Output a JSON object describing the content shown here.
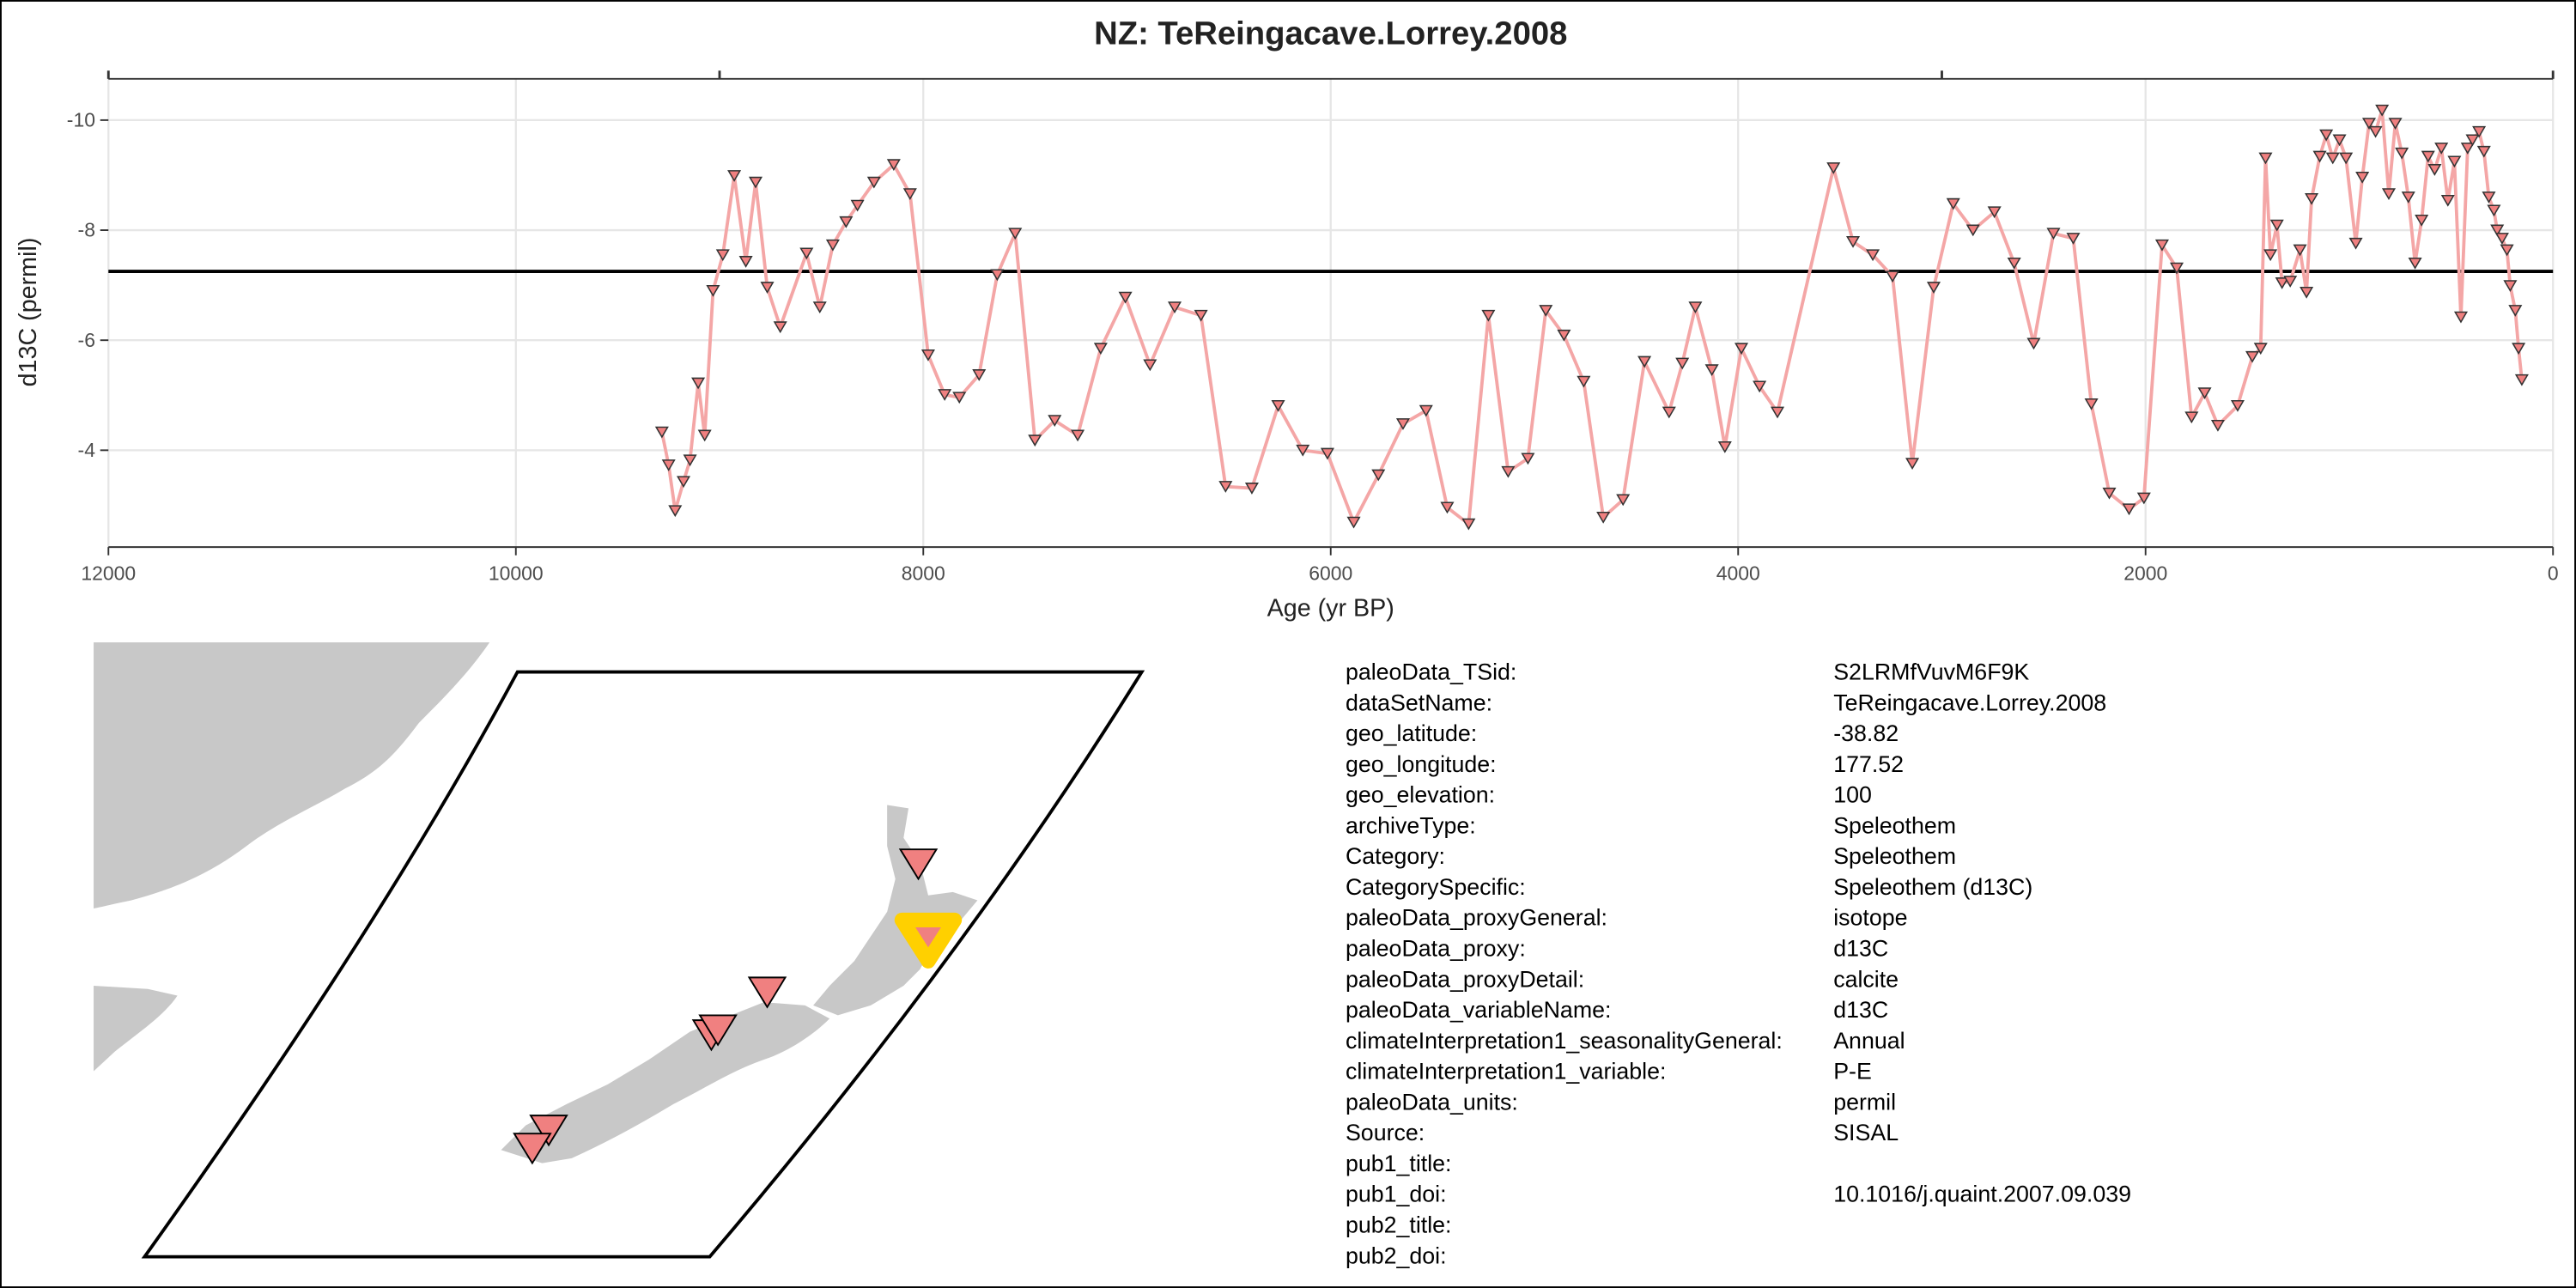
{
  "chart_data": {
    "type": "line",
    "title": "NZ: TeReingacave.Lorrey.2008",
    "x_label": "Age (yr BP)",
    "y_label": "d13C (permil)",
    "x": [
      9283,
      9250,
      9218,
      9177,
      9145,
      9105,
      9073,
      9032,
      8984,
      8928,
      8871,
      8823,
      8766,
      8702,
      8573,
      8508,
      8444,
      8379,
      8323,
      8242,
      8145,
      8065,
      7976,
      7895,
      7823,
      7726,
      7637,
      7549,
      7452,
      7355,
      7242,
      7129,
      7008,
      6887,
      6766,
      6637,
      6516,
      6387,
      6258,
      6137,
      6016,
      5887,
      5766,
      5645,
      5532,
      5428,
      5323,
      5226,
      5129,
      5032,
      4944,
      4855,
      4758,
      4662,
      4565,
      4460,
      4339,
      4274,
      4210,
      4129,
      4065,
      3984,
      3895,
      3807,
      3532,
      3436,
      3339,
      3242,
      3145,
      3040,
      2944,
      2847,
      2742,
      2645,
      2549,
      2452,
      2355,
      2266,
      2178,
      2081,
      2008,
      1919,
      1847,
      1774,
      1710,
      1645,
      1548,
      1476,
      1435,
      1411,
      1387,
      1355,
      1330,
      1290,
      1242,
      1210,
      1185,
      1145,
      1113,
      1081,
      1048,
      1016,
      968,
      936,
      903,
      871,
      839,
      806,
      774,
      742,
      710,
      677,
      645,
      613,
      581,
      548,
      516,
      484,
      452,
      419,
      395,
      363,
      339,
      315,
      290,
      274,
      250,
      226,
      210,
      185,
      169,
      153
    ],
    "values": [
      -4.33,
      -3.73,
      -2.9,
      -3.43,
      -3.82,
      -5.22,
      -4.27,
      -6.9,
      -7.55,
      -8.99,
      -7.43,
      -8.87,
      -6.96,
      -6.24,
      -7.58,
      -6.6,
      -7.73,
      -8.15,
      -8.45,
      -8.87,
      -9.19,
      -8.66,
      -5.73,
      -5.01,
      -4.96,
      -5.37,
      -7.19,
      -7.94,
      -4.18,
      -4.54,
      -4.27,
      -5.85,
      -6.78,
      -5.55,
      -6.6,
      -6.45,
      -3.34,
      -3.31,
      -4.81,
      -4.0,
      -3.94,
      -2.69,
      -3.55,
      -4.48,
      -4.72,
      -2.96,
      -2.66,
      -6.45,
      -3.61,
      -3.85,
      -6.54,
      -6.09,
      -5.25,
      -2.78,
      -3.1,
      -5.61,
      -4.69,
      -5.58,
      -6.6,
      -5.46,
      -4.06,
      -5.85,
      -5.16,
      -4.69,
      -9.13,
      -7.79,
      -7.55,
      -7.16,
      -3.76,
      -6.96,
      -8.48,
      -8.0,
      -8.33,
      -7.4,
      -5.94,
      -7.94,
      -7.85,
      -4.84,
      -3.22,
      -2.93,
      -3.13,
      -7.73,
      -7.31,
      -4.6,
      -5.04,
      -4.45,
      -4.81,
      -5.7,
      -5.85,
      -9.31,
      -7.55,
      -8.09,
      -7.04,
      -7.07,
      -7.64,
      -6.87,
      -8.57,
      -9.34,
      -9.73,
      -9.31,
      -9.64,
      -9.31,
      -7.76,
      -8.96,
      -9.94,
      -9.79,
      -10.18,
      -8.66,
      -9.94,
      -9.4,
      -8.6,
      -7.4,
      -8.18,
      -9.34,
      -9.1,
      -9.49,
      -8.54,
      -9.25,
      -6.42,
      -9.49,
      -9.64,
      -9.79,
      -9.43,
      -8.6,
      -8.36,
      -8.0,
      -7.85,
      -7.64,
      -6.99,
      -6.54,
      -5.85,
      -5.28
    ],
    "line_color": "#f4a6a6",
    "marker_color": "#f08080",
    "reference_line": -7.25,
    "xlim": [
      12000,
      0
    ],
    "xticks": [
      12000,
      10000,
      8000,
      6000,
      4000,
      2000,
      0
    ],
    "top_axis_ticks": [
      12000,
      9000,
      3000,
      0
    ],
    "ylim": [
      -2.24,
      -10.75
    ],
    "yticks": [
      -10,
      -8,
      -6,
      -4
    ],
    "grid": true
  },
  "metadata": {
    "rows": [
      [
        "paleoData_TSid:",
        "S2LRMfVuvM6F9K"
      ],
      [
        "dataSetName:",
        "TeReingacave.Lorrey.2008"
      ],
      [
        "geo_latitude:",
        "-38.82"
      ],
      [
        "geo_longitude:",
        "177.52"
      ],
      [
        "geo_elevation:",
        "100"
      ],
      [
        "archiveType:",
        "Speleothem"
      ],
      [
        "Category:",
        "Speleothem"
      ],
      [
        "CategorySpecific:",
        "Speleothem (d13C)"
      ],
      [
        "paleoData_proxyGeneral:",
        "isotope"
      ],
      [
        "paleoData_proxy:",
        "d13C"
      ],
      [
        "paleoData_proxyDetail:",
        "calcite"
      ],
      [
        "paleoData_variableName:",
        "d13C"
      ],
      [
        "climateInterpretation1_seasonalityGeneral:",
        "Annual"
      ],
      [
        "climateInterpretation1_variable:",
        "P-E"
      ],
      [
        "paleoData_units:",
        "permil"
      ],
      [
        "Source:",
        "SISAL"
      ],
      [
        "pub1_title:"
      ],
      [
        "pub1_doi:",
        "10.1016/j.quaint.2007.09.039"
      ],
      [
        "pub2_title:"
      ],
      [
        "pub2_doi:"
      ]
    ]
  }
}
